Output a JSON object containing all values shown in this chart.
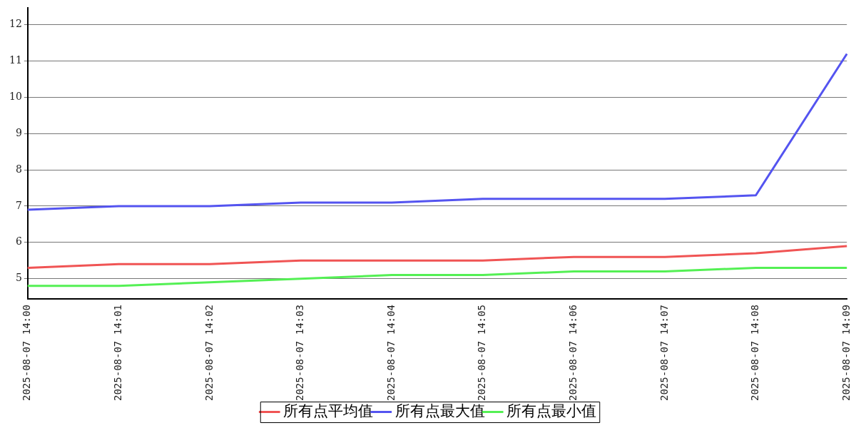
{
  "chart_data": {
    "type": "line",
    "categories": [
      "2025-08-07 14:00",
      "2025-08-07 14:01",
      "2025-08-07 14:02",
      "2025-08-07 14:03",
      "2025-08-07 14:04",
      "2025-08-07 14:05",
      "2025-08-07 14:06",
      "2025-08-07 14:07",
      "2025-08-07 14:08",
      "2025-08-07 14:09"
    ],
    "series": [
      {
        "name": "所有点平均值",
        "color": "#f05454",
        "values": [
          5.3,
          5.4,
          5.4,
          5.5,
          5.5,
          5.5,
          5.6,
          5.6,
          5.7,
          5.9
        ]
      },
      {
        "name": "所有点最大值",
        "color": "#5454f0",
        "values": [
          6.9,
          7.0,
          7.0,
          7.1,
          7.1,
          7.2,
          7.2,
          7.2,
          7.3,
          11.2
        ]
      },
      {
        "name": "所有点最小值",
        "color": "#54f054",
        "values": [
          4.8,
          4.8,
          4.9,
          5.0,
          5.1,
          5.1,
          5.2,
          5.2,
          5.3,
          5.3
        ]
      }
    ],
    "ylim": [
      4.44,
      12.46
    ],
    "yticks": [
      5,
      6,
      7,
      8,
      9,
      10,
      11,
      12
    ],
    "grid": "y",
    "legend": "bottom",
    "marker": "none",
    "line_style": "solid"
  }
}
